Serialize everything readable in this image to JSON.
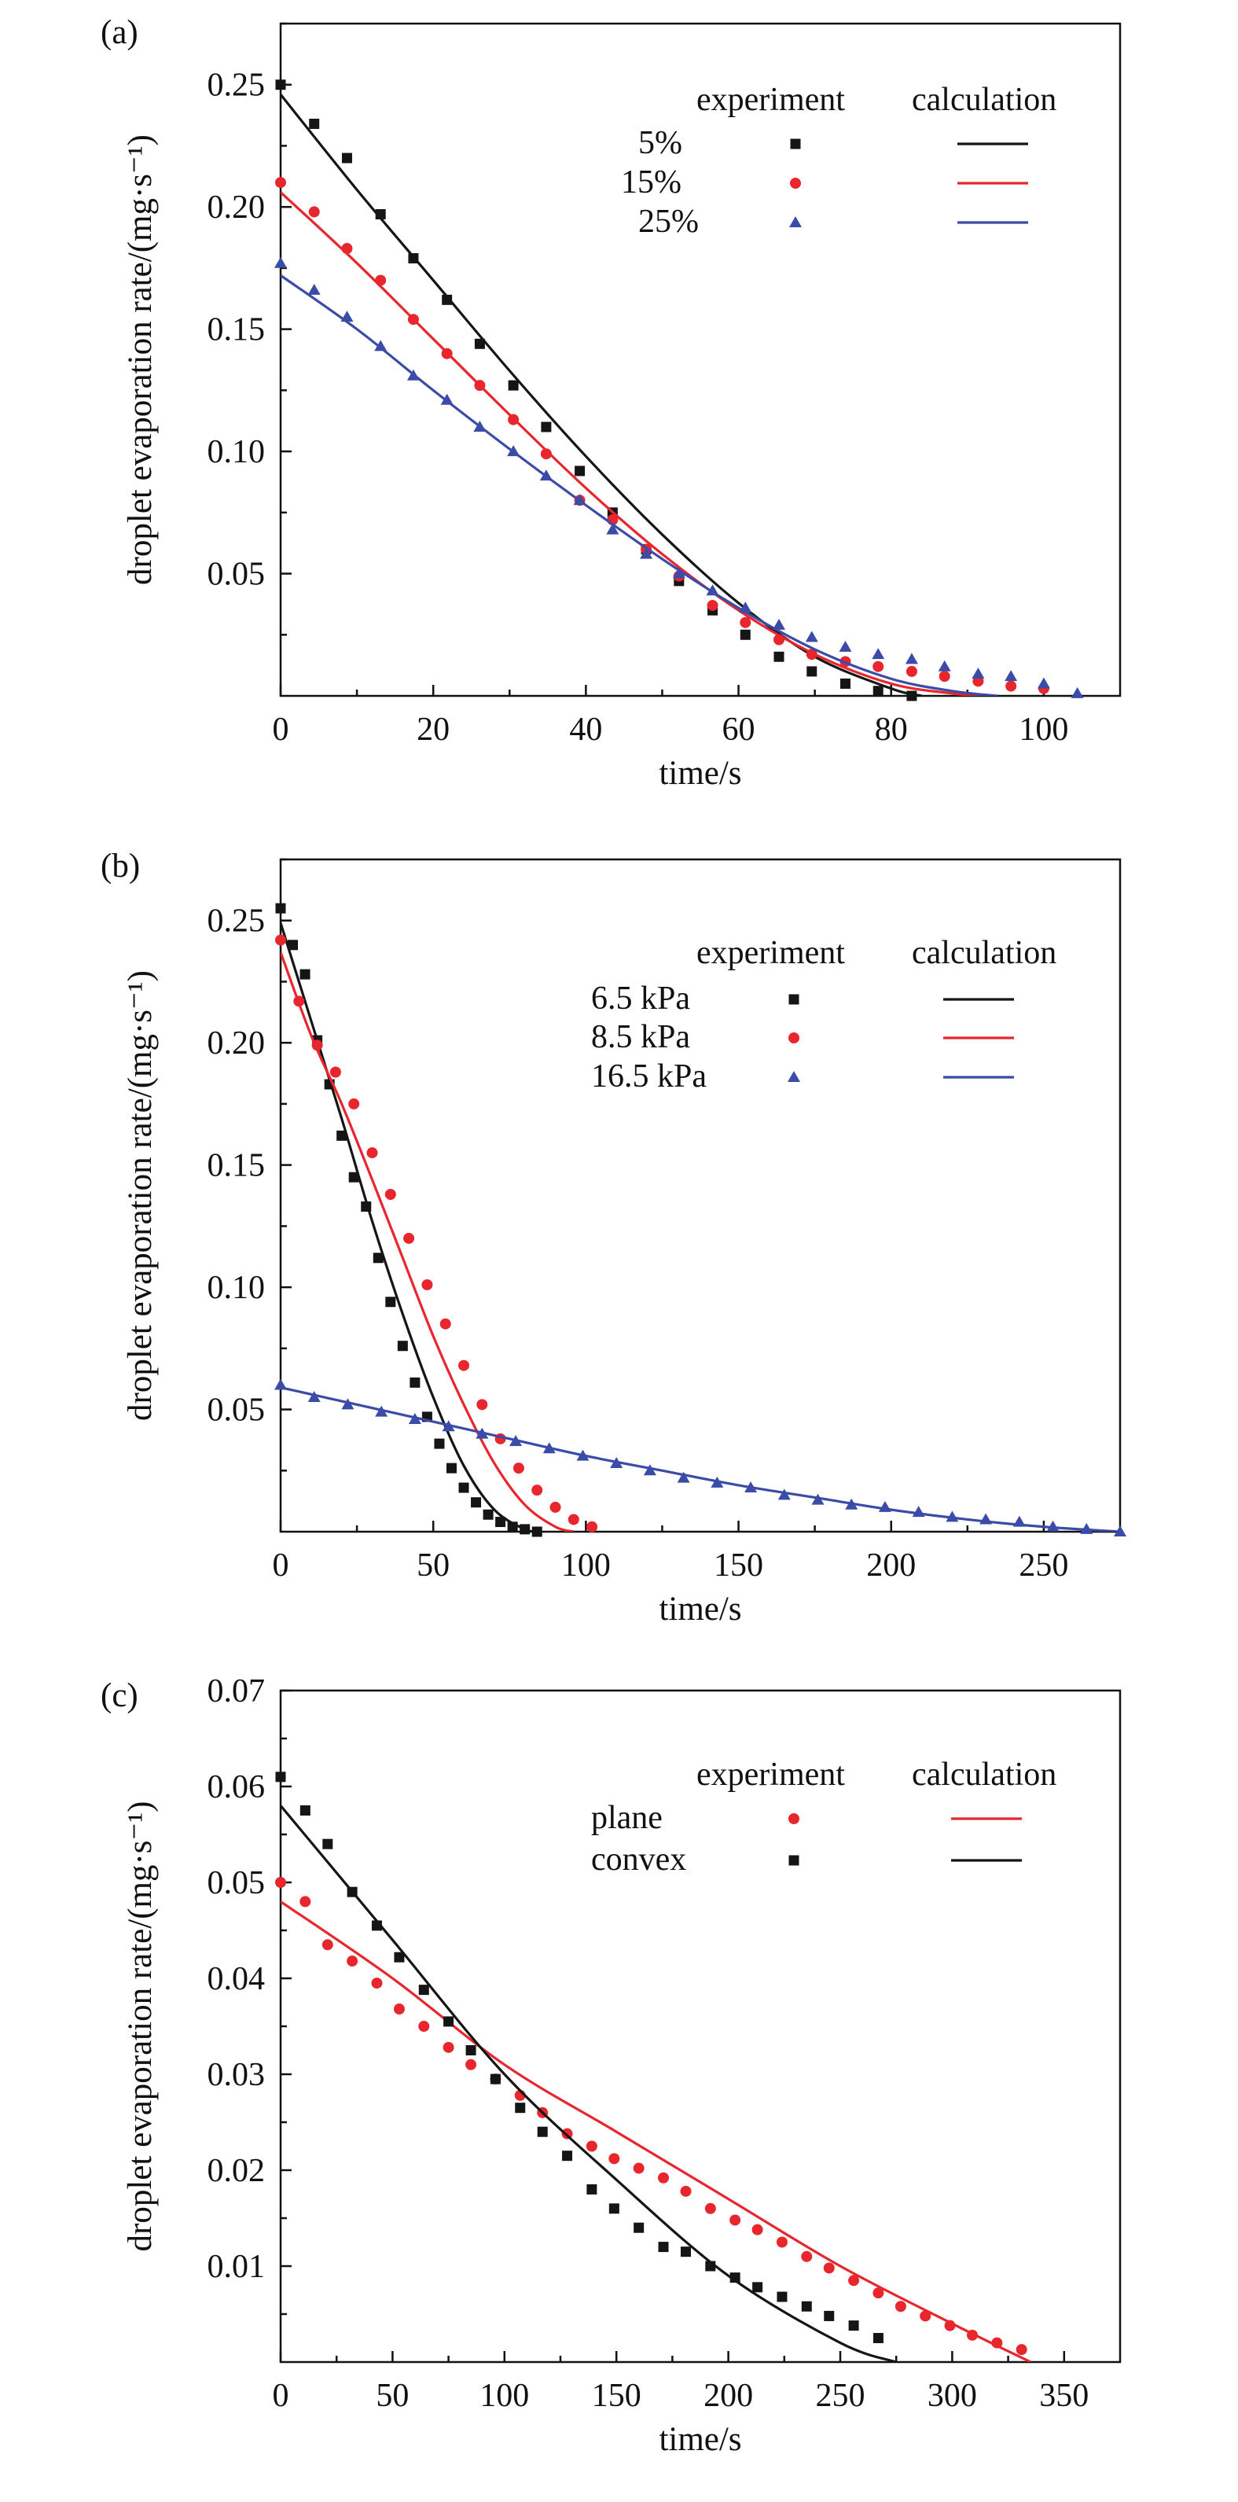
{
  "colors": {
    "black": "#151515",
    "red": "#e8262d",
    "blue": "#3b4ba8"
  },
  "legend_headers": {
    "experiment": "experiment",
    "calculation": "calculation"
  },
  "chart_data": [
    {
      "type": "scatter",
      "panel_label": "(a)",
      "xlabel": "time/s",
      "ylabel": "droplet evaporation rate/(mg·s⁻¹)",
      "xlim": [
        0,
        110
      ],
      "ylim": [
        0,
        0.275
      ],
      "x_ticks": [
        0,
        20,
        40,
        60,
        80,
        100
      ],
      "x_tick_labels": [
        "0",
        "20",
        "40",
        "60",
        "80",
        "100"
      ],
      "y_ticks": [
        0.05,
        0.1,
        0.15,
        0.2,
        0.25
      ],
      "y_tick_labels": [
        "0.05",
        "0.10",
        "0.15",
        "0.20",
        "0.25"
      ],
      "legend_position": "top-right",
      "series": [
        {
          "name": "5%",
          "color": "black",
          "marker": "square",
          "experiment": {
            "x": [
              0,
              4.4,
              8.7,
              13.1,
              17.4,
              21.8,
              26.1,
              30.5,
              34.8,
              39.2,
              43.5,
              47.9,
              52.2,
              56.6,
              60.9,
              65.3,
              69.6,
              74.0,
              78.3,
              82.7
            ],
            "y": [
              0.25,
              0.234,
              0.22,
              0.197,
              0.179,
              0.162,
              0.144,
              0.127,
              0.11,
              0.092,
              0.075,
              0.06,
              0.047,
              0.035,
              0.025,
              0.016,
              0.01,
              0.005,
              0.002,
              0.0
            ]
          },
          "calculation": {
            "x": [
              0,
              10,
              20,
              30,
              40,
              50,
              60,
              70,
              80,
              84
            ],
            "y": [
              0.246,
              0.207,
              0.17,
              0.133,
              0.098,
              0.066,
              0.038,
              0.016,
              0.003,
              0.0
            ]
          }
        },
        {
          "name": "15%",
          "color": "red",
          "marker": "circle",
          "experiment": {
            "x": [
              0,
              4.4,
              8.7,
              13.1,
              17.4,
              21.8,
              26.1,
              30.5,
              34.8,
              39.2,
              43.5,
              47.9,
              52.2,
              56.6,
              60.9,
              65.3,
              69.6,
              74.0,
              78.3,
              82.7,
              87.0,
              91.4,
              95.7,
              100.0
            ],
            "y": [
              0.21,
              0.198,
              0.183,
              0.17,
              0.154,
              0.14,
              0.127,
              0.113,
              0.099,
              0.08,
              0.072,
              0.06,
              0.049,
              0.037,
              0.03,
              0.023,
              0.017,
              0.014,
              0.012,
              0.01,
              0.008,
              0.006,
              0.004,
              0.003
            ]
          },
          "calculation": {
            "x": [
              0,
              10,
              20,
              30,
              40,
              50,
              60,
              70,
              80,
              88,
              92
            ],
            "y": [
              0.206,
              0.177,
              0.146,
              0.115,
              0.085,
              0.058,
              0.035,
              0.017,
              0.005,
              0.001,
              0.0
            ]
          }
        },
        {
          "name": "25%",
          "color": "blue",
          "marker": "triangle",
          "experiment": {
            "x": [
              0,
              4.4,
              8.7,
              13.1,
              17.4,
              21.8,
              26.1,
              30.5,
              34.8,
              39.2,
              43.5,
              47.9,
              52.2,
              56.6,
              60.9,
              65.3,
              69.6,
              74.0,
              78.3,
              82.7,
              87.0,
              91.4,
              95.7,
              100.0,
              104.4
            ],
            "y": [
              0.177,
              0.166,
              0.155,
              0.143,
              0.131,
              0.121,
              0.11,
              0.1,
              0.09,
              0.08,
              0.068,
              0.058,
              0.05,
              0.043,
              0.036,
              0.029,
              0.024,
              0.02,
              0.017,
              0.015,
              0.012,
              0.009,
              0.008,
              0.005,
              0.001
            ]
          },
          "calculation": {
            "x": [
              0,
              10,
              20,
              30,
              40,
              50,
              60,
              70,
              80,
              88,
              94
            ],
            "y": [
              0.172,
              0.15,
              0.125,
              0.101,
              0.078,
              0.056,
              0.036,
              0.019,
              0.007,
              0.002,
              0.0
            ]
          }
        }
      ]
    },
    {
      "type": "scatter",
      "panel_label": "(b)",
      "xlabel": "time/s",
      "ylabel": "droplet evaporation rate/(mg·s⁻¹)",
      "xlim": [
        0,
        275
      ],
      "ylim": [
        0,
        0.275
      ],
      "x_ticks": [
        0,
        50,
        100,
        150,
        200,
        250
      ],
      "x_tick_labels": [
        "0",
        "50",
        "100",
        "150",
        "200",
        "250"
      ],
      "y_ticks": [
        0.05,
        0.1,
        0.15,
        0.2,
        0.25
      ],
      "y_tick_labels": [
        "0.05",
        "0.10",
        "0.15",
        "0.20",
        "0.25"
      ],
      "legend_position": "top-right",
      "series": [
        {
          "name": "6.5 kPa",
          "color": "black",
          "marker": "square",
          "experiment": {
            "x": [
              0,
              4,
              8,
              12,
              16,
              20,
              24,
              28,
              32,
              36,
              40,
              44,
              48,
              52,
              56,
              60,
              64,
              68,
              72,
              76,
              80,
              84
            ],
            "y": [
              0.255,
              0.24,
              0.228,
              0.201,
              0.183,
              0.162,
              0.145,
              0.133,
              0.112,
              0.094,
              0.076,
              0.061,
              0.047,
              0.036,
              0.026,
              0.018,
              0.012,
              0.007,
              0.004,
              0.002,
              0.001,
              0.0
            ]
          },
          "calculation": {
            "x": [
              0,
              10,
              20,
              30,
              40,
              50,
              60,
              70,
              80,
              85
            ],
            "y": [
              0.249,
              0.209,
              0.169,
              0.127,
              0.089,
              0.055,
              0.027,
              0.009,
              0.001,
              0.0
            ]
          }
        },
        {
          "name": "8.5 kPa",
          "color": "red",
          "marker": "circle",
          "experiment": {
            "x": [
              0,
              6,
              12,
              18,
              24,
              30,
              36,
              42,
              48,
              54,
              60,
              66,
              72,
              78,
              84,
              90,
              96,
              102
            ],
            "y": [
              0.242,
              0.217,
              0.199,
              0.188,
              0.175,
              0.155,
              0.138,
              0.12,
              0.101,
              0.085,
              0.068,
              0.052,
              0.038,
              0.026,
              0.017,
              0.01,
              0.005,
              0.002
            ]
          },
          "calculation": {
            "x": [
              0,
              10,
              20,
              30,
              40,
              50,
              60,
              70,
              80,
              90,
              96
            ],
            "y": [
              0.237,
              0.203,
              0.175,
              0.144,
              0.112,
              0.08,
              0.052,
              0.028,
              0.011,
              0.002,
              0.0
            ]
          }
        },
        {
          "name": "16.5 kPa",
          "color": "blue",
          "marker": "triangle",
          "experiment": {
            "x": [
              0,
              11,
              22,
              33,
              44,
              55,
              66,
              77,
              88,
              99,
              110,
              121,
              132,
              143,
              154,
              165,
              176,
              187,
              198,
              209,
              220,
              231,
              242,
              253,
              264,
              275
            ],
            "y": [
              0.06,
              0.055,
              0.052,
              0.049,
              0.046,
              0.043,
              0.04,
              0.037,
              0.034,
              0.031,
              0.028,
              0.025,
              0.022,
              0.02,
              0.018,
              0.015,
              0.013,
              0.011,
              0.01,
              0.008,
              0.006,
              0.005,
              0.004,
              0.002,
              0.001,
              0.0
            ]
          },
          "calculation": {
            "x": [
              0,
              25,
              50,
              75,
              100,
              125,
              150,
              175,
              200,
              225,
              250,
              275
            ],
            "y": [
              0.059,
              0.052,
              0.045,
              0.038,
              0.031,
              0.025,
              0.019,
              0.014,
              0.009,
              0.005,
              0.002,
              0.0
            ]
          }
        }
      ]
    },
    {
      "type": "scatter",
      "panel_label": "(c)",
      "xlabel": "time/s",
      "ylabel": "droplet evaporation rate/(mg·s⁻¹)",
      "xlim": [
        0,
        375
      ],
      "ylim": [
        0,
        0.07
      ],
      "x_ticks": [
        0,
        50,
        100,
        150,
        200,
        250,
        300,
        350
      ],
      "x_tick_labels": [
        "0",
        "50",
        "100",
        "150",
        "200",
        "250",
        "300",
        "350"
      ],
      "y_ticks": [
        0.01,
        0.02,
        0.03,
        0.04,
        0.05,
        0.06,
        0.07
      ],
      "y_tick_labels": [
        "0.01",
        "0.02",
        "0.03",
        "0.04",
        "0.05",
        "0.06",
        "0.07"
      ],
      "legend_position": "top-right",
      "series": [
        {
          "name": "plane",
          "color": "red",
          "marker": "circle",
          "experiment": {
            "x": [
              0,
              11,
              21,
              32,
              43,
              53,
              64,
              75,
              85,
              96,
              107,
              117,
              128,
              139,
              149,
              160,
              171,
              181,
              192,
              203,
              213,
              224,
              235,
              245,
              256,
              267,
              277,
              288,
              299,
              309,
              320,
              331
            ],
            "y": [
              0.05,
              0.048,
              0.0435,
              0.0418,
              0.0395,
              0.0368,
              0.035,
              0.0328,
              0.031,
              0.0295,
              0.0278,
              0.026,
              0.0238,
              0.0225,
              0.0212,
              0.0202,
              0.0192,
              0.0178,
              0.016,
              0.0148,
              0.0138,
              0.0125,
              0.011,
              0.0098,
              0.0085,
              0.0072,
              0.0058,
              0.0048,
              0.0038,
              0.0028,
              0.002,
              0.0013
            ]
          },
          "calculation": {
            "x": [
              0,
              50,
              100,
              150,
              200,
              250,
              300,
              335
            ],
            "y": [
              0.048,
              0.04,
              0.031,
              0.024,
              0.017,
              0.01,
              0.004,
              0.0
            ]
          }
        },
        {
          "name": "convex",
          "color": "black",
          "marker": "square",
          "experiment": {
            "x": [
              0,
              11,
              21,
              32,
              43,
              53,
              64,
              75,
              85,
              96,
              107,
              117,
              128,
              139,
              149,
              160,
              171,
              181,
              192,
              203,
              213,
              224,
              235,
              245,
              256,
              267
            ],
            "y": [
              0.061,
              0.0575,
              0.054,
              0.049,
              0.0455,
              0.0422,
              0.0388,
              0.0355,
              0.0325,
              0.0295,
              0.0265,
              0.024,
              0.0215,
              0.018,
              0.016,
              0.014,
              0.012,
              0.0115,
              0.01,
              0.0088,
              0.0078,
              0.0068,
              0.0058,
              0.0048,
              0.0038,
              0.0025
            ]
          },
          "calculation": {
            "x": [
              0,
              50,
              100,
              150,
              200,
              250,
              275
            ],
            "y": [
              0.058,
              0.044,
              0.03,
              0.019,
              0.009,
              0.002,
              0.0
            ]
          }
        }
      ]
    }
  ]
}
